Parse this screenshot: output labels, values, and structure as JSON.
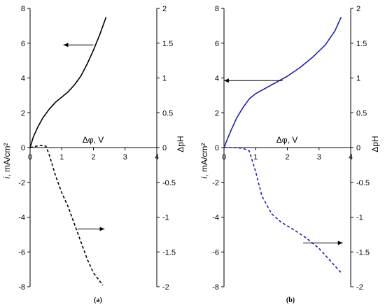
{
  "chart_data": [
    {
      "type": "line",
      "panel_label": "(a)",
      "xlabel": "Δφ, V",
      "ylabel_left": "i, mA/cm²",
      "ylabel_right": "ΔpH",
      "xlim": [
        0,
        4
      ],
      "ylim_left": [
        -8,
        8
      ],
      "ylim_right": [
        -2,
        2
      ],
      "x_ticks": [
        "0",
        "1",
        "2",
        "3",
        "4"
      ],
      "y_left_ticks": [
        "-8",
        "-6",
        "-4",
        "-2",
        "0",
        "2",
        "4",
        "6",
        "8"
      ],
      "y_right_ticks": [
        "-2",
        "-1.5",
        "-1",
        "-0.5",
        "0",
        "0.5",
        "1",
        "1.5",
        "2"
      ],
      "series": [
        {
          "axis": "left",
          "color": "#000000",
          "style": "solid",
          "x": [
            0,
            0.1,
            0.25,
            0.4,
            0.6,
            0.8,
            1.0,
            1.2,
            1.4,
            1.6,
            1.8,
            2.0,
            2.2,
            2.4
          ],
          "y": [
            0,
            0.6,
            1.2,
            1.7,
            2.2,
            2.6,
            2.9,
            3.2,
            3.6,
            4.1,
            4.8,
            5.6,
            6.5,
            7.5
          ]
        },
        {
          "axis": "right",
          "color": "#000000",
          "style": "dashed",
          "x": [
            0,
            0.2,
            0.35,
            0.5,
            0.6,
            0.7,
            0.8,
            1.0,
            1.2,
            1.4,
            1.6,
            1.8,
            2.0,
            2.3
          ],
          "y": [
            0,
            0.02,
            0.03,
            0.02,
            -0.1,
            -0.25,
            -0.4,
            -0.65,
            -0.85,
            -1.1,
            -1.35,
            -1.6,
            -1.8,
            -1.98
          ]
        }
      ],
      "arrows": [
        {
          "direction": "left",
          "y_axis": "left",
          "x_from": 2.0,
          "x_to": 1.05,
          "y": 5.9
        },
        {
          "direction": "right",
          "y_axis": "right",
          "x_from": 1.5,
          "x_to": 2.35,
          "y": -1.17
        }
      ]
    },
    {
      "type": "line",
      "panel_label": "(b)",
      "xlabel": "Δφ, V",
      "ylabel_left": "i, mA/cm²",
      "ylabel_right": "ΔpH",
      "xlim": [
        0,
        4
      ],
      "ylim_left": [
        -8,
        8
      ],
      "ylim_right": [
        -2,
        2
      ],
      "x_ticks": [
        "0",
        "1",
        "2",
        "3",
        "4"
      ],
      "y_left_ticks": [
        "-8",
        "-6",
        "-4",
        "-2",
        "0",
        "2",
        "4",
        "6",
        "8"
      ],
      "y_right_ticks": [
        "-2",
        "-1.5",
        "-1",
        "-0.5",
        "0",
        "0.5",
        "1",
        "1.5",
        "2"
      ],
      "series": [
        {
          "axis": "left",
          "color": "#1f1fb4",
          "style": "solid",
          "x": [
            0,
            0.2,
            0.4,
            0.6,
            0.8,
            1.0,
            1.3,
            1.6,
            2.0,
            2.4,
            2.8,
            3.2,
            3.5,
            3.7
          ],
          "y": [
            0,
            0.9,
            1.7,
            2.3,
            2.8,
            3.1,
            3.4,
            3.7,
            4.1,
            4.6,
            5.2,
            5.9,
            6.7,
            7.5
          ]
        },
        {
          "axis": "right",
          "color": "#1f1fb4",
          "style": "dashed",
          "x": [
            0,
            0.3,
            0.6,
            0.8,
            1.0,
            1.2,
            1.5,
            1.8,
            2.2,
            2.6,
            3.0,
            3.4,
            3.7
          ],
          "y": [
            0,
            0.0,
            -0.01,
            -0.05,
            -0.35,
            -0.7,
            -0.95,
            -1.07,
            -1.18,
            -1.3,
            -1.45,
            -1.65,
            -1.8
          ]
        }
      ],
      "arrows": [
        {
          "direction": "left",
          "y_axis": "left",
          "x_from": 1.85,
          "x_to": 0.0,
          "y": 3.85
        },
        {
          "direction": "right",
          "y_axis": "right",
          "x_from": 2.5,
          "x_to": 3.75,
          "y": -1.37
        }
      ]
    }
  ]
}
